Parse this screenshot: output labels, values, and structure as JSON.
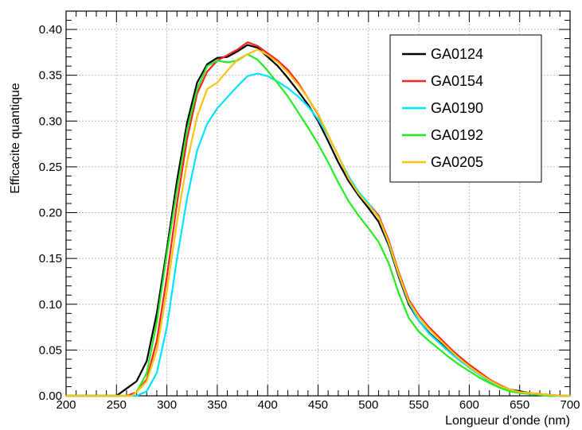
{
  "chart_data": {
    "type": "line",
    "xlabel": "Longueur d'onde (nm)",
    "ylabel": "Efficacite quantique",
    "xlim": [
      200,
      700
    ],
    "ylim": [
      0,
      0.42
    ],
    "x_ticks": [
      "200",
      "250",
      "300",
      "350",
      "400",
      "450",
      "500",
      "550",
      "600",
      "650",
      "700"
    ],
    "y_ticks": [
      "0.00",
      "0.05",
      "0.10",
      "0.15",
      "0.20",
      "0.25",
      "0.30",
      "0.35",
      "0.40"
    ],
    "grid": true,
    "legend_position": "top-right",
    "series": [
      {
        "name": "GA0124",
        "color": "#000000",
        "x": [
          200,
          250,
          260,
          270,
          280,
          290,
          300,
          310,
          320,
          330,
          340,
          350,
          360,
          370,
          380,
          390,
          400,
          410,
          420,
          430,
          440,
          450,
          460,
          470,
          480,
          490,
          500,
          510,
          520,
          530,
          540,
          550,
          560,
          570,
          580,
          590,
          600,
          610,
          620,
          630,
          640,
          650,
          660,
          670,
          680,
          690,
          700
        ],
        "values": [
          0,
          0,
          0.008,
          0.016,
          0.038,
          0.09,
          0.16,
          0.235,
          0.298,
          0.342,
          0.362,
          0.369,
          0.37,
          0.376,
          0.383,
          0.38,
          0.37,
          0.36,
          0.347,
          0.333,
          0.318,
          0.3,
          0.278,
          0.255,
          0.235,
          0.219,
          0.205,
          0.19,
          0.165,
          0.13,
          0.1,
          0.082,
          0.069,
          0.059,
          0.049,
          0.04,
          0.032,
          0.024,
          0.017,
          0.011,
          0.007,
          0.005,
          0.003,
          0.002,
          0.001,
          0,
          0
        ]
      },
      {
        "name": "GA0154",
        "color": "#ff2020",
        "x": [
          200,
          260,
          270,
          280,
          290,
          300,
          310,
          320,
          330,
          340,
          350,
          360,
          370,
          380,
          390,
          400,
          410,
          420,
          430,
          440,
          450,
          460,
          470,
          480,
          490,
          500,
          510,
          520,
          530,
          540,
          550,
          560,
          570,
          580,
          590,
          600,
          610,
          620,
          630,
          640,
          650,
          660,
          670,
          680,
          690,
          700
        ],
        "values": [
          0,
          0,
          0.004,
          0.018,
          0.06,
          0.13,
          0.21,
          0.28,
          0.33,
          0.354,
          0.366,
          0.372,
          0.378,
          0.386,
          0.382,
          0.374,
          0.366,
          0.356,
          0.342,
          0.325,
          0.307,
          0.284,
          0.262,
          0.238,
          0.222,
          0.21,
          0.197,
          0.17,
          0.135,
          0.105,
          0.088,
          0.075,
          0.064,
          0.053,
          0.043,
          0.034,
          0.026,
          0.018,
          0.012,
          0.007,
          0.004,
          0.003,
          0.002,
          0.001,
          0,
          0
        ]
      },
      {
        "name": "GA0190",
        "color": "#00e5ff",
        "x": [
          200,
          270,
          280,
          290,
          300,
          310,
          320,
          330,
          340,
          350,
          360,
          370,
          380,
          390,
          400,
          410,
          420,
          430,
          440,
          450,
          460,
          470,
          480,
          490,
          500,
          510,
          520,
          530,
          540,
          550,
          560,
          570,
          580,
          590,
          600,
          610,
          620,
          630,
          640,
          650,
          660,
          670,
          680,
          690,
          700
        ],
        "values": [
          0,
          0,
          0.005,
          0.025,
          0.075,
          0.15,
          0.215,
          0.268,
          0.297,
          0.314,
          0.326,
          0.338,
          0.349,
          0.352,
          0.349,
          0.343,
          0.336,
          0.327,
          0.316,
          0.302,
          0.284,
          0.262,
          0.24,
          0.223,
          0.21,
          0.195,
          0.167,
          0.132,
          0.102,
          0.082,
          0.068,
          0.058,
          0.048,
          0.039,
          0.031,
          0.023,
          0.016,
          0.01,
          0.006,
          0.003,
          0.002,
          0.001,
          0,
          0,
          0
        ]
      },
      {
        "name": "GA0192",
        "color": "#22ee22",
        "x": [
          200,
          265,
          270,
          280,
          290,
          300,
          310,
          320,
          330,
          340,
          350,
          360,
          370,
          380,
          390,
          400,
          410,
          420,
          430,
          440,
          450,
          460,
          470,
          480,
          490,
          500,
          510,
          520,
          530,
          540,
          550,
          560,
          570,
          580,
          590,
          600,
          610,
          620,
          630,
          640,
          650,
          660,
          670,
          680,
          690,
          700
        ],
        "values": [
          0,
          0,
          0.004,
          0.025,
          0.08,
          0.155,
          0.225,
          0.29,
          0.335,
          0.36,
          0.366,
          0.364,
          0.366,
          0.373,
          0.367,
          0.355,
          0.341,
          0.327,
          0.31,
          0.293,
          0.275,
          0.255,
          0.233,
          0.213,
          0.197,
          0.183,
          0.168,
          0.145,
          0.112,
          0.085,
          0.07,
          0.06,
          0.051,
          0.042,
          0.034,
          0.027,
          0.02,
          0.014,
          0.009,
          0.005,
          0.003,
          0.002,
          0.001,
          0,
          0,
          0
        ]
      },
      {
        "name": "GA0205",
        "color": "#ffc20e",
        "x": [
          200,
          265,
          270,
          280,
          290,
          300,
          310,
          320,
          330,
          340,
          350,
          360,
          370,
          380,
          390,
          400,
          410,
          420,
          430,
          440,
          450,
          460,
          470,
          480,
          490,
          500,
          510,
          520,
          530,
          540,
          550,
          560,
          570,
          580,
          590,
          600,
          610,
          620,
          630,
          640,
          650,
          660,
          670,
          680,
          690,
          700
        ],
        "values": [
          0,
          0,
          0.004,
          0.016,
          0.05,
          0.115,
          0.19,
          0.255,
          0.305,
          0.335,
          0.342,
          0.355,
          0.367,
          0.373,
          0.378,
          0.372,
          0.364,
          0.353,
          0.34,
          0.325,
          0.308,
          0.285,
          0.262,
          0.238,
          0.221,
          0.208,
          0.195,
          0.168,
          0.133,
          0.103,
          0.086,
          0.073,
          0.062,
          0.051,
          0.041,
          0.032,
          0.024,
          0.017,
          0.011,
          0.007,
          0.004,
          0.003,
          0.002,
          0.001,
          0,
          0
        ]
      }
    ]
  }
}
